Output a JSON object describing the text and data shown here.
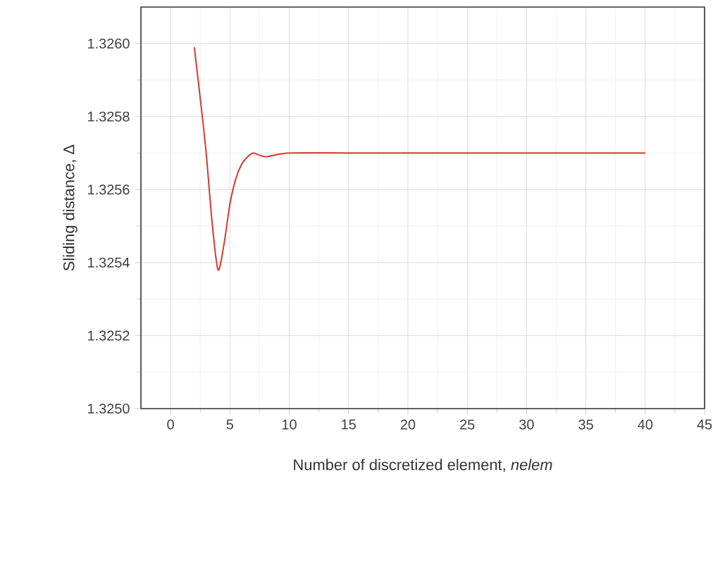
{
  "chart_data": {
    "type": "line",
    "xlabel": "Number of discretized element, *nelem*",
    "ylabel": "Sliding distance, Δ",
    "x": [
      2,
      2.5,
      3,
      3.5,
      4,
      4.5,
      5,
      5.5,
      6,
      6.5,
      7,
      8,
      10,
      15,
      20,
      30,
      40
    ],
    "series": [
      {
        "color": "#d9372b",
        "values": [
          1.32599,
          1.32585,
          1.3257,
          1.32551,
          1.32538,
          1.32545,
          1.32556,
          1.32563,
          1.32567,
          1.32569,
          1.3257,
          1.32569,
          1.3257,
          1.3257,
          1.3257,
          1.3257,
          1.3257
        ]
      }
    ],
    "xlim": [
      -2.5,
      45
    ],
    "ylim": [
      1.325,
      1.3261
    ],
    "xticks": [
      0,
      5,
      10,
      15,
      20,
      25,
      30,
      35,
      40,
      45
    ],
    "yticks": [
      {
        "value": 1.325,
        "label": "1.3250"
      },
      {
        "value": 1.3252,
        "label": "1.3252"
      },
      {
        "value": 1.3254,
        "label": "1.3254"
      },
      {
        "value": 1.3256,
        "label": "1.3256"
      },
      {
        "value": 1.3258,
        "label": "1.3258"
      },
      {
        "value": 1.326,
        "label": "1.3260"
      }
    ],
    "grid": true,
    "marker": "none",
    "line_style": "solid"
  }
}
